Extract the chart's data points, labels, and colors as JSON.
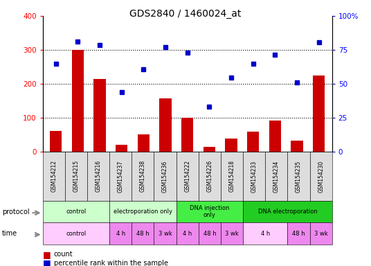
{
  "title": "GDS2840 / 1460024_at",
  "samples": [
    "GSM154212",
    "GSM154215",
    "GSM154216",
    "GSM154237",
    "GSM154238",
    "GSM154236",
    "GSM154222",
    "GSM154226",
    "GSM154218",
    "GSM154233",
    "GSM154234",
    "GSM154235",
    "GSM154230"
  ],
  "counts": [
    62,
    300,
    215,
    20,
    50,
    158,
    100,
    15,
    38,
    60,
    92,
    32,
    225
  ],
  "percentiles": [
    260,
    325,
    315,
    175,
    243,
    308,
    292,
    133,
    218,
    260,
    285,
    204,
    322
  ],
  "ylim": [
    0,
    400
  ],
  "yticks_left": [
    0,
    100,
    200,
    300,
    400
  ],
  "ytick_labels_right": [
    "0",
    "25",
    "50",
    "75",
    "100%"
  ],
  "bar_color": "#cc0000",
  "dot_color": "#0000cc",
  "protocol_row": [
    {
      "label": "control",
      "start": 0,
      "end": 3,
      "color": "#ccffcc"
    },
    {
      "label": "electroporation only",
      "start": 3,
      "end": 6,
      "color": "#ccffcc"
    },
    {
      "label": "DNA injection\nonly",
      "start": 6,
      "end": 9,
      "color": "#44ee44"
    },
    {
      "label": "DNA electroporation",
      "start": 9,
      "end": 13,
      "color": "#22cc22"
    }
  ],
  "time_row": [
    {
      "label": "control",
      "start": 0,
      "end": 3,
      "color": "#ffccff"
    },
    {
      "label": "4 h",
      "start": 3,
      "end": 4,
      "color": "#ee88ee"
    },
    {
      "label": "48 h",
      "start": 4,
      "end": 5,
      "color": "#ee88ee"
    },
    {
      "label": "3 wk",
      "start": 5,
      "end": 6,
      "color": "#ee88ee"
    },
    {
      "label": "4 h",
      "start": 6,
      "end": 7,
      "color": "#ee88ee"
    },
    {
      "label": "48 h",
      "start": 7,
      "end": 8,
      "color": "#ee88ee"
    },
    {
      "label": "3 wk",
      "start": 8,
      "end": 9,
      "color": "#ee88ee"
    },
    {
      "label": "4 h",
      "start": 9,
      "end": 11,
      "color": "#ffccff"
    },
    {
      "label": "48 h",
      "start": 11,
      "end": 12,
      "color": "#ee88ee"
    },
    {
      "label": "3 wk",
      "start": 12,
      "end": 13,
      "color": "#ee88ee"
    }
  ],
  "prot_light_color": "#ccffcc",
  "prot_dark_color": "#44ee44",
  "prot_darkest_color": "#22cc22",
  "time_light_color": "#ffccff",
  "time_dark_color": "#dd66dd",
  "background_color": "#ffffff",
  "label_fontsize": 7,
  "tick_fontsize": 7.5,
  "title_fontsize": 10
}
